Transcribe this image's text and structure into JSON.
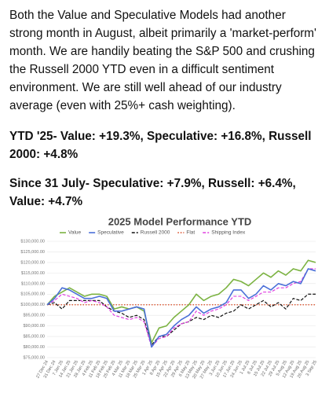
{
  "post": {
    "paragraphs": [
      "Both the Value and Speculative Models had another strong month in August, albeit primarily a 'market-perform' month. We are handily beating the S&P 500 and crushing the Russell 2000 YTD even in a difficult sentiment environment. We are still well ahead of our industry average (even with 25%+ cash weighting).",
      "YTD '25- Value: +19.3%, Speculative: +16.8%, Russell 2000: +4.8%",
      "Since 31 July- Speculative: +7.9%, Russell: +6.4%, Value: +4.7%"
    ]
  },
  "chart_data": {
    "type": "line",
    "title": "2025 Model Performance YTD",
    "categories": [
      "27 Dec 24",
      "31 Dec 24",
      "7 Jan 25",
      "14 Jan 25",
      "21 Jan 25",
      "28 Jan 25",
      "4 Feb 25",
      "11 Feb 25",
      "18 Feb 25",
      "25 Feb 25",
      "4 Mar 25",
      "11 Mar 25",
      "18 Mar 25",
      "25 Mar 25",
      "1 Apr 25",
      "8 Apr 25",
      "15 Apr 25",
      "22 Apr 25",
      "29 Apr 25",
      "6 May 25",
      "13 May 25",
      "20 May 25",
      "27 May 25",
      "3 Jun 25",
      "10 Jun 25",
      "17 Jun 25",
      "24 Jun 25",
      "1 Jul 25",
      "8 Jul 25",
      "15 Jul 25",
      "22 Jul 25",
      "29 Jul 25",
      "5 Aug 25",
      "12 Aug 25",
      "19 Aug 25",
      "26 Aug 25",
      "3 Sep 25"
    ],
    "series": [
      {
        "name": "Value",
        "color": "#7cb342",
        "style": "solid",
        "values": [
          100000,
          104000,
          106000,
          108000,
          106000,
          104000,
          105000,
          105000,
          104000,
          98000,
          99000,
          98000,
          99000,
          97000,
          82000,
          89000,
          90000,
          94000,
          97000,
          100000,
          105000,
          102000,
          104000,
          105000,
          108000,
          112000,
          111000,
          109000,
          112000,
          115000,
          113000,
          116000,
          114000,
          117000,
          116000,
          121000,
          120000
        ]
      },
      {
        "name": "Speculative",
        "color": "#4a6fd8",
        "style": "solid",
        "values": [
          100000,
          103000,
          108000,
          107000,
          105000,
          103000,
          103000,
          104000,
          103000,
          97000,
          97000,
          98000,
          99000,
          98000,
          80000,
          85000,
          86000,
          90000,
          93000,
          95000,
          99000,
          96000,
          98000,
          99000,
          101000,
          107000,
          107000,
          103000,
          105000,
          109000,
          107000,
          110000,
          109000,
          111000,
          110000,
          117000,
          116000
        ]
      },
      {
        "name": "Russell 2000",
        "color": "#111111",
        "style": "dashed",
        "values": [
          100000,
          101000,
          98000,
          102000,
          102000,
          102000,
          102000,
          102000,
          99000,
          97000,
          96000,
          94000,
          95000,
          93000,
          81000,
          85000,
          85000,
          88000,
          91000,
          92000,
          94000,
          93000,
          95000,
          94000,
          96000,
          97000,
          100000,
          98000,
          100000,
          102000,
          99000,
          101000,
          98000,
          103000,
          102000,
          105000,
          105000
        ]
      },
      {
        "name": "Flat",
        "color": "#d9471f",
        "style": "dotted",
        "values": [
          100000,
          100000,
          100000,
          100000,
          100000,
          100000,
          100000,
          100000,
          100000,
          100000,
          100000,
          100000,
          100000,
          100000,
          100000,
          100000,
          100000,
          100000,
          100000,
          100000,
          100000,
          100000,
          100000,
          100000,
          100000,
          100000,
          100000,
          100000,
          100000,
          100000,
          100000,
          100000,
          100000,
          100000,
          100000,
          100000,
          100000
        ]
      },
      {
        "name": "Shipping Index",
        "color": "#e040e0",
        "style": "dashed",
        "values": [
          100000,
          102000,
          105000,
          104000,
          103000,
          101000,
          102000,
          101000,
          99000,
          95000,
          94000,
          93000,
          94000,
          92000,
          80000,
          84000,
          85000,
          89000,
          91000,
          92000,
          97000,
          95000,
          97000,
          98000,
          100000,
          104000,
          104000,
          102000,
          104000,
          106000,
          106000,
          108000,
          108000,
          110000,
          111000,
          117000,
          117000
        ]
      }
    ],
    "ylim": [
      75000,
      130000
    ],
    "yticks": [
      {
        "value": 75000,
        "label": "$75,000.00"
      },
      {
        "value": 80000,
        "label": "$80,000.00"
      },
      {
        "value": 85000,
        "label": "$85,000.00"
      },
      {
        "value": 90000,
        "label": "$90,000.00"
      },
      {
        "value": 95000,
        "label": "$95,000.00"
      },
      {
        "value": 100000,
        "label": "$100,000.00"
      },
      {
        "value": 105000,
        "label": "$105,000.00"
      },
      {
        "value": 110000,
        "label": "$110,000.00"
      },
      {
        "value": 115000,
        "label": "$115,000.00"
      },
      {
        "value": 120000,
        "label": "$120,000.00"
      },
      {
        "value": 125000,
        "label": "$125,000.00"
      },
      {
        "value": 130000,
        "label": "$130,000.00"
      }
    ],
    "grid": true,
    "legend": "top"
  }
}
